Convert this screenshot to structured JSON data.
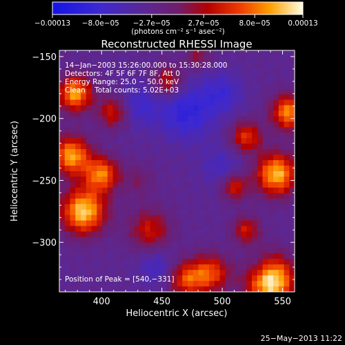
{
  "chart_data": {
    "type": "heatmap",
    "title": "Reconstructed RHESSI Image",
    "xlabel": "Heliocentric X (arcsec)",
    "ylabel": "Heliocentric Y (arcsec)",
    "xlim": [
      365,
      560
    ],
    "ylim": [
      -340,
      -145
    ],
    "x_ticks": [
      400,
      450,
      500,
      550
    ],
    "y_ticks": [
      -150,
      -200,
      -250,
      -300
    ],
    "x_tick_labels": [
      "400",
      "450",
      "500",
      "550"
    ],
    "y_tick_labels": [
      "−150",
      "−200",
      "−250",
      "−300"
    ],
    "colorbar": {
      "ticks": [
        -0.00013,
        -8e-05,
        -2.7e-05,
        2.7e-05,
        8e-05,
        0.00013
      ],
      "tick_labels": [
        "−0.00013",
        "−8.0e−05",
        "−2.7e−05",
        "2.7e−05",
        "8.0e−05",
        "0.00013"
      ],
      "units": "(photons cm⁻² s⁻¹ asec⁻²)",
      "range": [
        -0.00013,
        0.00013
      ]
    },
    "annotations": [
      "14−Jan−2003 15:26:00.000 to 15:30:28.000",
      "Detectors: 4F 5F 6F 7F 8F, Att 0",
      "Energy Range: 25.0 − 50.0 keV",
      "Clean    Total counts: 5.02E+03"
    ],
    "peak_label": "Position of Peak = [540,−331]",
    "grid_size": [
      44,
      44
    ],
    "sources": [
      {
        "x": 540,
        "y": -331,
        "amp": 1.0,
        "sigma": 14
      },
      {
        "x": 385,
        "y": -275,
        "amp": 0.9,
        "sigma": 13
      },
      {
        "x": 400,
        "y": -245,
        "amp": 0.7,
        "sigma": 10
      },
      {
        "x": 375,
        "y": -230,
        "amp": 0.8,
        "sigma": 11
      },
      {
        "x": 378,
        "y": -180,
        "amp": 0.8,
        "sigma": 10
      },
      {
        "x": 410,
        "y": -195,
        "amp": 0.5,
        "sigma": 9
      },
      {
        "x": 545,
        "y": -245,
        "amp": 0.85,
        "sigma": 12
      },
      {
        "x": 555,
        "y": -195,
        "amp": 0.75,
        "sigma": 10
      },
      {
        "x": 520,
        "y": -215,
        "amp": 0.55,
        "sigma": 9
      },
      {
        "x": 510,
        "y": -255,
        "amp": 0.5,
        "sigma": 8
      },
      {
        "x": 490,
        "y": -325,
        "amp": 0.6,
        "sigma": 11
      },
      {
        "x": 440,
        "y": -290,
        "amp": 0.45,
        "sigma": 12
      },
      {
        "x": 470,
        "y": -330,
        "amp": 0.55,
        "sigma": 10
      },
      {
        "x": 455,
        "y": -170,
        "amp": 0.45,
        "sigma": 9
      },
      {
        "x": 520,
        "y": -290,
        "amp": 0.45,
        "sigma": 8
      },
      {
        "x": 480,
        "y": -150,
        "amp": 0.3,
        "sigma": 7
      },
      {
        "x": 430,
        "y": -250,
        "amp": 0.2,
        "sigma": 9
      }
    ],
    "negative_sources": [
      {
        "x": 470,
        "y": -195,
        "amp": 0.7,
        "sigma": 16
      },
      {
        "x": 430,
        "y": -190,
        "amp": 0.5,
        "sigma": 12
      },
      {
        "x": 500,
        "y": -180,
        "amp": 0.5,
        "sigma": 12
      },
      {
        "x": 500,
        "y": -240,
        "amp": 0.4,
        "sigma": 12
      },
      {
        "x": 445,
        "y": -320,
        "amp": 0.45,
        "sigma": 10
      },
      {
        "x": 530,
        "y": -320,
        "amp": 0.35,
        "sigma": 8
      }
    ]
  },
  "footer": {
    "timestamp": "25−May−2013 11:22"
  }
}
